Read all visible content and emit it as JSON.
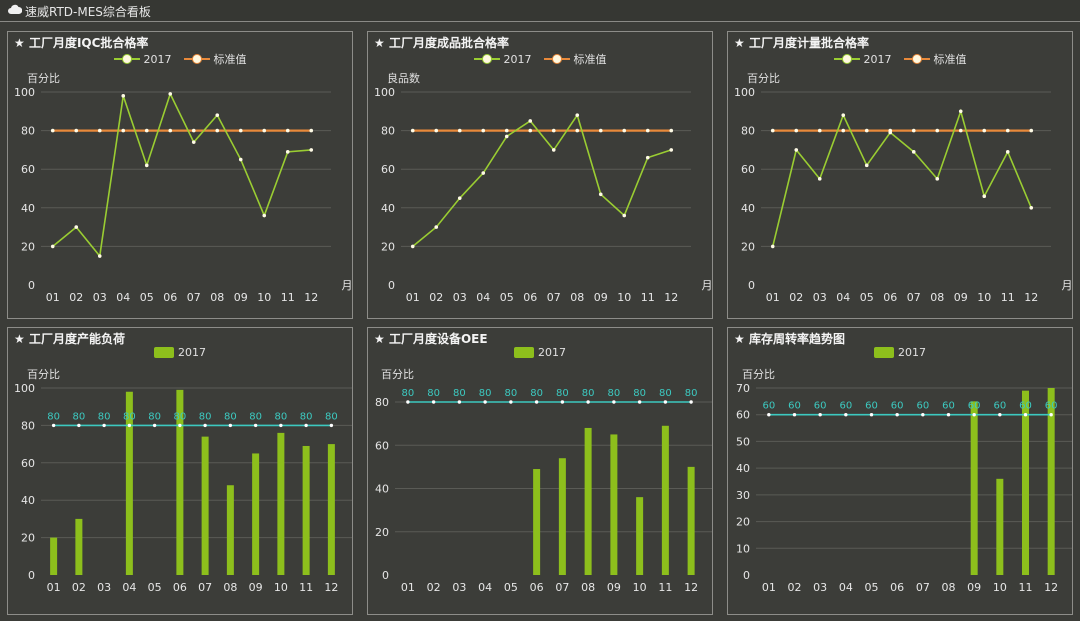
{
  "header": {
    "title": "速威RTD-MES综合看板",
    "icon": "cloud-icon"
  },
  "colors": {
    "series": "#9acd32",
    "standard": "#e8893a",
    "bar": "#8dbf1c",
    "ref_line": "#3cc9c0"
  },
  "chart_data": [
    {
      "type": "line",
      "title": "工厂月度IQC批合格率",
      "ylabel": "百分比",
      "xlabel": "月",
      "ylim": [
        0,
        100
      ],
      "yticks": [
        0,
        20,
        40,
        60,
        80,
        100
      ],
      "grid": true,
      "legend": "top-center",
      "categories": [
        "01",
        "02",
        "03",
        "04",
        "05",
        "06",
        "07",
        "08",
        "09",
        "10",
        "11",
        "12"
      ],
      "series": [
        {
          "name": "2017",
          "values": [
            20,
            30,
            15,
            98,
            62,
            99,
            74,
            88,
            65,
            36,
            69,
            70
          ]
        },
        {
          "name": "标准值",
          "values": [
            80,
            80,
            80,
            80,
            80,
            80,
            80,
            80,
            80,
            80,
            80,
            80
          ]
        }
      ]
    },
    {
      "type": "line",
      "title": "工厂月度成品批合格率",
      "ylabel": "良品数",
      "xlabel": "月",
      "ylim": [
        0,
        100
      ],
      "yticks": [
        0,
        20,
        40,
        60,
        80,
        100
      ],
      "grid": true,
      "legend": "top-center",
      "categories": [
        "01",
        "02",
        "03",
        "04",
        "05",
        "06",
        "07",
        "08",
        "09",
        "10",
        "11",
        "12"
      ],
      "series": [
        {
          "name": "2017",
          "values": [
            20,
            30,
            45,
            58,
            77,
            85,
            70,
            88,
            47,
            36,
            66,
            70
          ]
        },
        {
          "name": "标准值",
          "values": [
            80,
            80,
            80,
            80,
            80,
            80,
            80,
            80,
            80,
            80,
            80,
            80
          ]
        }
      ]
    },
    {
      "type": "line",
      "title": "工厂月度计量批合格率",
      "ylabel": "百分比",
      "xlabel": "月",
      "ylim": [
        0,
        100
      ],
      "yticks": [
        0,
        20,
        40,
        60,
        80,
        100
      ],
      "grid": true,
      "legend": "top-center",
      "categories": [
        "01",
        "02",
        "03",
        "04",
        "05",
        "06",
        "07",
        "08",
        "09",
        "10",
        "11",
        "12"
      ],
      "series": [
        {
          "name": "2017",
          "values": [
            20,
            70,
            55,
            88,
            62,
            79,
            69,
            55,
            90,
            46,
            69,
            40
          ]
        },
        {
          "name": "标准值",
          "values": [
            80,
            80,
            80,
            80,
            80,
            80,
            80,
            80,
            80,
            80,
            80,
            80
          ]
        }
      ]
    },
    {
      "type": "bar",
      "title": "工厂月度产能负荷",
      "ylabel": "百分比",
      "ylim": [
        0,
        100
      ],
      "yticks": [
        0,
        20,
        40,
        60,
        80,
        100
      ],
      "grid": true,
      "legend": "top-center",
      "categories": [
        "01",
        "02",
        "03",
        "04",
        "05",
        "06",
        "07",
        "08",
        "09",
        "10",
        "11",
        "12"
      ],
      "series": [
        {
          "name": "2017",
          "values": [
            20,
            30,
            0,
            98,
            0,
            99,
            74,
            48,
            65,
            76,
            69,
            70
          ]
        }
      ],
      "reference": {
        "values": [
          80,
          80,
          80,
          80,
          80,
          80,
          80,
          80,
          80,
          80,
          80,
          80
        ],
        "labels": [
          "80",
          "80",
          "80",
          "80",
          "80",
          "80",
          "80",
          "80",
          "80",
          "80",
          "80",
          "80"
        ]
      }
    },
    {
      "type": "bar",
      "title": "工厂月度设备OEE",
      "ylabel": "百分比",
      "ylim": [
        0,
        80
      ],
      "yticks": [
        0,
        20,
        40,
        60,
        80
      ],
      "grid": true,
      "legend": "top-center",
      "categories": [
        "01",
        "02",
        "03",
        "04",
        "05",
        "06",
        "07",
        "08",
        "09",
        "10",
        "11",
        "12"
      ],
      "series": [
        {
          "name": "2017",
          "values": [
            0,
            0,
            0,
            0,
            0,
            49,
            54,
            68,
            65,
            36,
            69,
            50
          ]
        }
      ],
      "reference": {
        "values": [
          80,
          80,
          80,
          80,
          80,
          80,
          80,
          80,
          80,
          80,
          80,
          80
        ],
        "labels": [
          "80",
          "80",
          "80",
          "80",
          "80",
          "80",
          "80",
          "80",
          "80",
          "80",
          "80",
          "80"
        ]
      }
    },
    {
      "type": "bar",
      "title": "库存周转率趋势图",
      "ylabel": "百分比",
      "ylim": [
        0,
        70
      ],
      "yticks": [
        0,
        10,
        20,
        30,
        40,
        50,
        60,
        70
      ],
      "grid": true,
      "legend": "top-center",
      "categories": [
        "01",
        "02",
        "03",
        "04",
        "05",
        "06",
        "07",
        "08",
        "09",
        "10",
        "11",
        "12"
      ],
      "series": [
        {
          "name": "2017",
          "values": [
            0,
            0,
            0,
            0,
            0,
            0,
            0,
            0,
            65,
            36,
            69,
            70
          ]
        }
      ],
      "reference": {
        "values": [
          60,
          60,
          60,
          60,
          60,
          60,
          60,
          60,
          60,
          60,
          60,
          60
        ],
        "labels": [
          "60",
          "60",
          "60",
          "60",
          "60",
          "60",
          "60",
          "60",
          "60",
          "60",
          "60",
          "60"
        ]
      }
    }
  ]
}
